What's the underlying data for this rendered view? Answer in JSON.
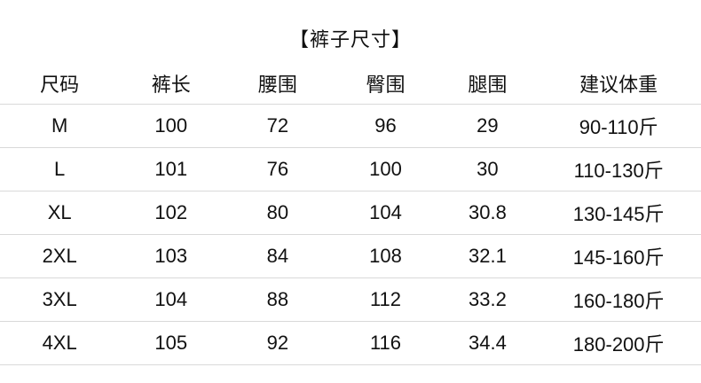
{
  "chart_data": {
    "type": "table",
    "title": "【裤子尺寸】",
    "columns": [
      "尺码",
      "裤长",
      "腰围",
      "臀围",
      "腿围",
      "建议体重"
    ],
    "rows": [
      [
        "M",
        "100",
        "72",
        "96",
        "29",
        "90-110斤"
      ],
      [
        "L",
        "101",
        "76",
        "100",
        "30",
        "110-130斤"
      ],
      [
        "XL",
        "102",
        "80",
        "104",
        "30.8",
        "130-145斤"
      ],
      [
        "2XL",
        "103",
        "84",
        "108",
        "32.1",
        "145-160斤"
      ],
      [
        "3XL",
        "104",
        "88",
        "112",
        "33.2",
        "160-180斤"
      ],
      [
        "4XL",
        "105",
        "92",
        "116",
        "34.4",
        "180-200斤"
      ]
    ],
    "layout": {
      "grid": "horizontal-dividers-only",
      "text_align": "center"
    }
  },
  "colors": {
    "background": "#ffffff",
    "text": "#111111",
    "divider": "#d9d9d9"
  }
}
